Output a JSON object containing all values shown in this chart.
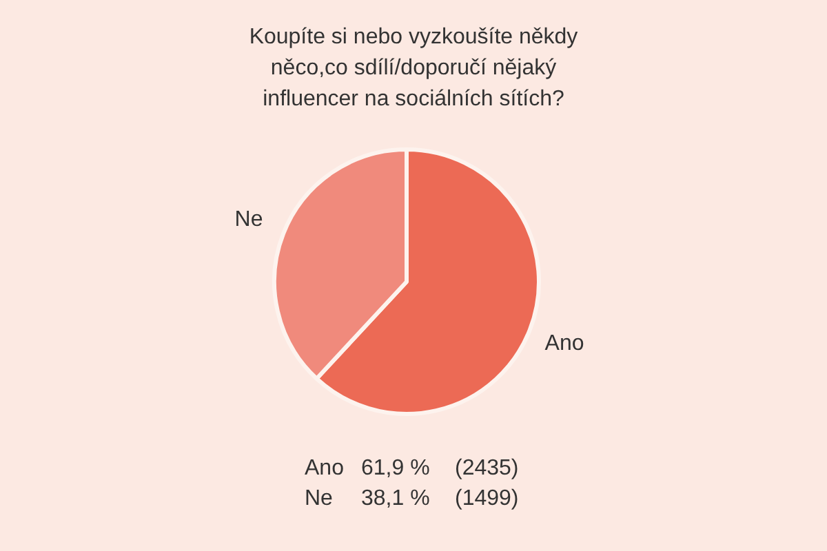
{
  "chart_data": {
    "type": "pie",
    "title": "Koupíte si nebo vyzkoušíte někdy něco,co sdílí/doporučí nějaký influencer na sociálních sítích?",
    "categories": [
      "Ano",
      "Ne"
    ],
    "values": [
      61.9,
      38.1
    ],
    "colors": [
      "#ec6a55",
      "#f08a7c"
    ],
    "annotations": [
      "Ano   61,9 %   (2435)",
      "Ne   38,1 %   (1499)"
    ]
  }
}
